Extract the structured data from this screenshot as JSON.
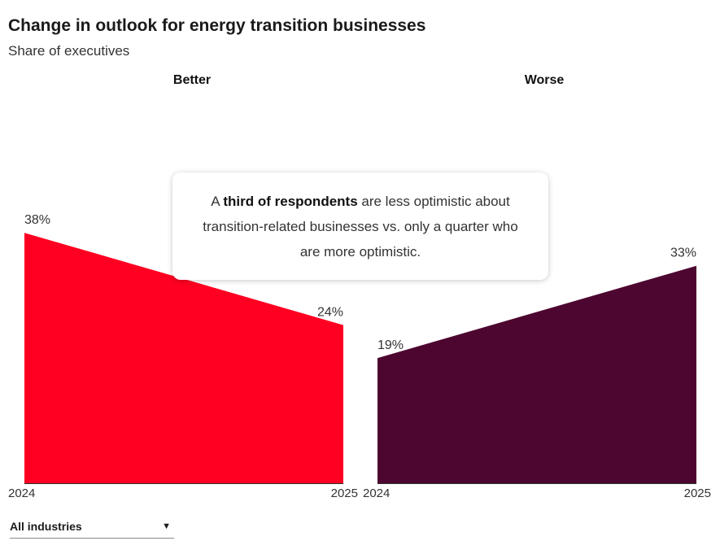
{
  "title": "Change in outlook for energy transition businesses",
  "subtitle": "Share of executives",
  "callout": {
    "prefix": "A ",
    "bold": "third of respondents",
    "suffix": " are less optimistic about transition-related businesses vs. only a quarter who are more optimistic."
  },
  "filter": {
    "selected": "All industries"
  },
  "colors": {
    "better": "#ff0022",
    "worse": "#4d0630"
  },
  "chart_data": [
    {
      "type": "area",
      "title": "Better",
      "x": [
        "2024",
        "2025"
      ],
      "values": [
        38,
        24
      ],
      "data_labels": [
        "38%",
        "24%"
      ],
      "ylim": [
        0,
        45
      ],
      "color": "better"
    },
    {
      "type": "area",
      "title": "Worse",
      "x": [
        "2024",
        "2025"
      ],
      "values": [
        19,
        33
      ],
      "data_labels": [
        "19%",
        "33%"
      ],
      "ylim": [
        0,
        45
      ],
      "color": "worse"
    }
  ]
}
